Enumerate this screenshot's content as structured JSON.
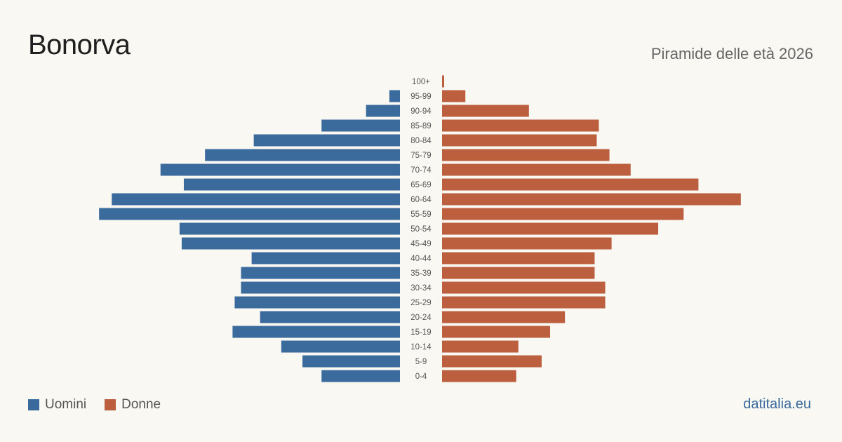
{
  "header": {
    "title": "Bonorva",
    "subtitle": "Piramide delle età 2026"
  },
  "legend": {
    "men_label": "Uomini",
    "women_label": "Donne"
  },
  "source": "datitalia.eu",
  "colors": {
    "men": "#3b6a9c",
    "women": "#bb5f3f",
    "background": "#faf8f3",
    "age_label": "#555555"
  },
  "chart_data": {
    "type": "bar",
    "orientation": "horizontal-pyramid",
    "categories": [
      "0-4",
      "5-9",
      "10-14",
      "15-19",
      "20-24",
      "25-29",
      "30-34",
      "35-39",
      "40-44",
      "45-49",
      "50-54",
      "55-59",
      "60-64",
      "65-69",
      "70-74",
      "75-79",
      "80-84",
      "85-89",
      "90-94",
      "95-99",
      "100+"
    ],
    "series": [
      {
        "name": "Uomini",
        "values": [
          37,
          46,
          56,
          79,
          66,
          78,
          75,
          75,
          70,
          103,
          104,
          142,
          136,
          102,
          113,
          92,
          69,
          37,
          16,
          5,
          0
        ]
      },
      {
        "name": "Donne",
        "values": [
          35,
          47,
          36,
          51,
          58,
          77,
          77,
          72,
          72,
          80,
          102,
          114,
          141,
          121,
          89,
          79,
          73,
          74,
          41,
          11,
          1
        ]
      }
    ],
    "legend_position": "bottom-left",
    "grid": false
  }
}
